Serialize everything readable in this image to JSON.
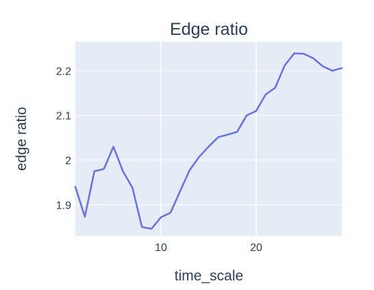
{
  "chart_data": {
    "type": "line",
    "title": "Edge ratio",
    "xlabel": "time_scale",
    "ylabel": "edge ratio",
    "xlim": [
      1,
      29
    ],
    "ylim": [
      1.83,
      2.265
    ],
    "xticks": [
      10,
      20
    ],
    "xtick_labels": [
      "10",
      "20"
    ],
    "yticks": [
      1.9,
      2.0,
      2.1,
      2.2
    ],
    "ytick_labels": [
      "1.9",
      "2",
      "2.1",
      "2.2"
    ],
    "grid": true,
    "legend": "none",
    "colors": {
      "line": "#636efa",
      "plot_bg": "#e5ecf6",
      "grid": "#ffffff",
      "text": "#2a3f5f"
    },
    "series": [
      {
        "x": [
          1,
          2,
          3,
          4,
          5,
          6,
          7,
          8,
          9,
          10,
          11,
          12,
          13,
          14,
          15,
          16,
          17,
          18,
          19,
          20,
          21,
          22,
          23,
          24,
          25,
          26,
          27,
          28,
          29
        ],
        "values": [
          1.94,
          1.873,
          1.975,
          1.98,
          2.03,
          1.975,
          1.938,
          1.85,
          1.846,
          1.872,
          1.882,
          1.93,
          1.977,
          2.007,
          2.03,
          2.051,
          2.057,
          2.063,
          2.1,
          2.11,
          2.147,
          2.162,
          2.212,
          2.239,
          2.238,
          2.228,
          2.21,
          2.2,
          2.206
        ]
      }
    ]
  }
}
